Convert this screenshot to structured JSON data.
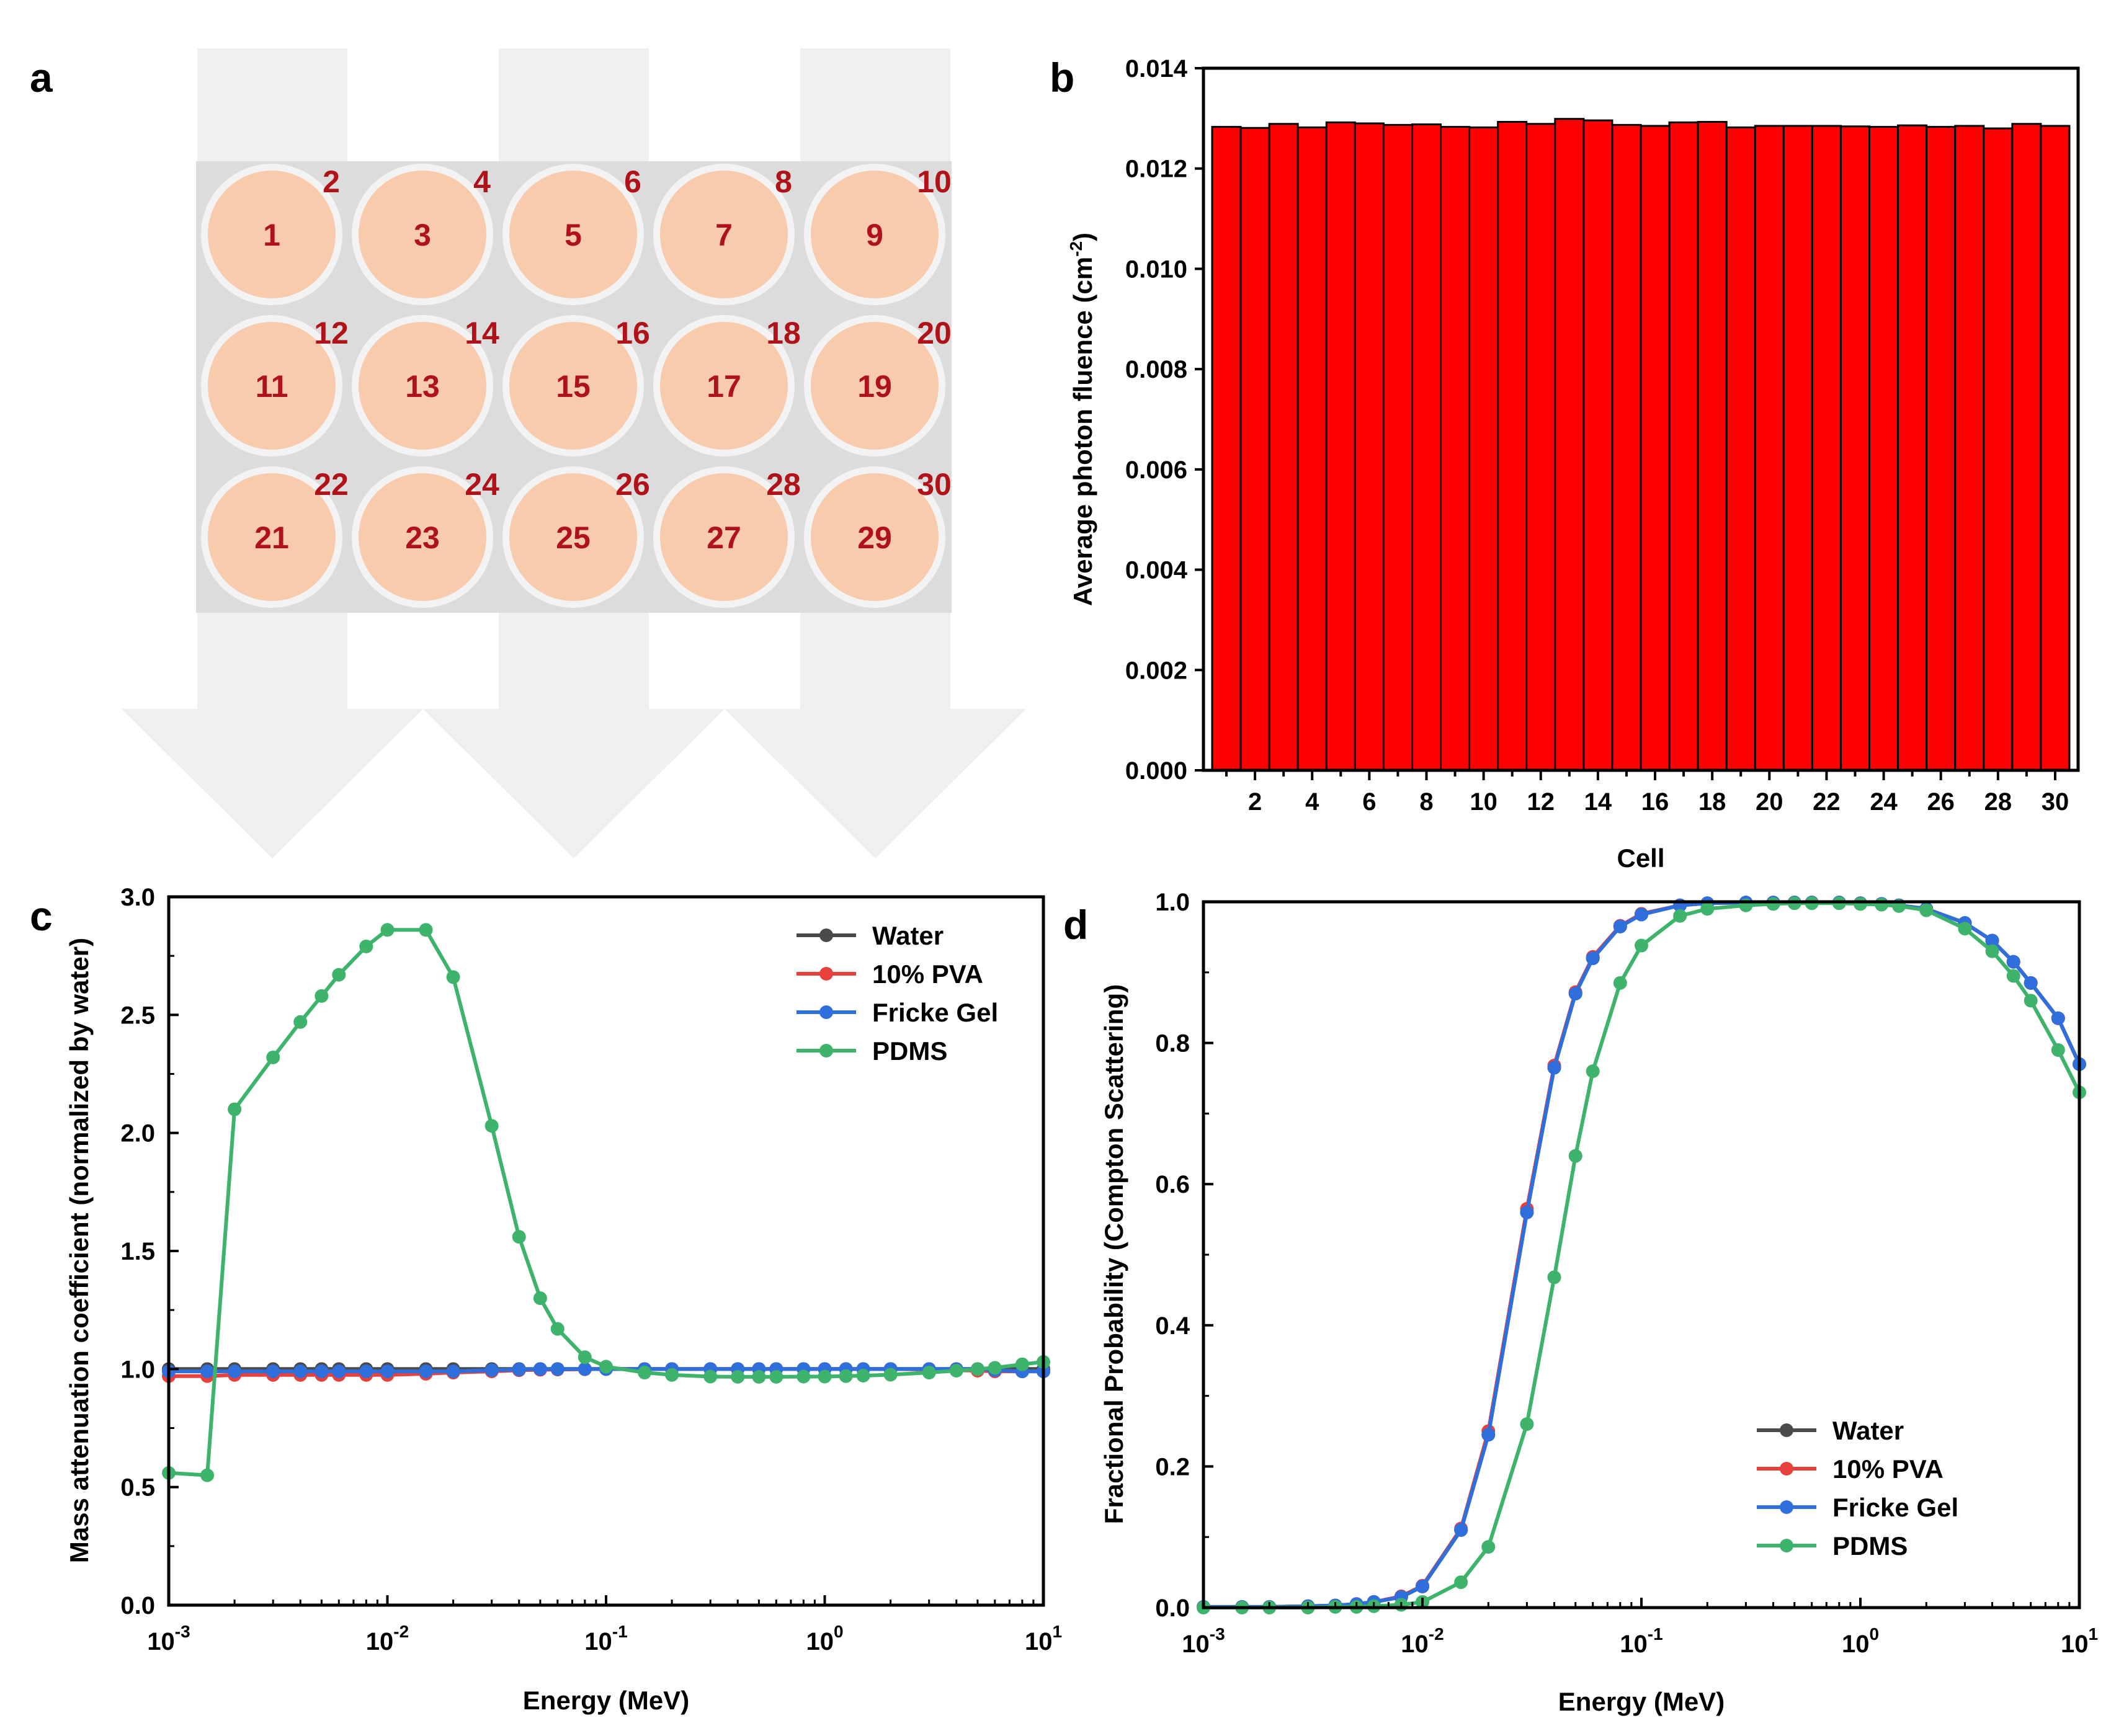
{
  "panels": {
    "a": "a",
    "b": "b",
    "c": "c",
    "d": "d"
  },
  "diagram_a": {
    "row1": {
      "centers": [
        "1",
        "3",
        "5",
        "7",
        "9"
      ],
      "corners": [
        "2",
        "4",
        "6",
        "8",
        "10"
      ]
    },
    "row2": {
      "centers": [
        "11",
        "13",
        "15",
        "17",
        "19"
      ],
      "corners": [
        "12",
        "14",
        "16",
        "18",
        "20"
      ]
    },
    "row3": {
      "centers": [
        "21",
        "23",
        "25",
        "27",
        "29"
      ],
      "corners": [
        "22",
        "24",
        "26",
        "28",
        "30"
      ]
    }
  },
  "chart_data": [
    {
      "id": "b",
      "type": "bar",
      "categories": [
        1,
        2,
        3,
        4,
        5,
        6,
        7,
        8,
        9,
        10,
        11,
        12,
        13,
        14,
        15,
        16,
        17,
        18,
        19,
        20,
        21,
        22,
        23,
        24,
        25,
        26,
        27,
        28,
        29,
        30
      ],
      "values": [
        0.01283,
        0.01281,
        0.01289,
        0.01282,
        0.01292,
        0.0129,
        0.01287,
        0.01288,
        0.01283,
        0.01282,
        0.01293,
        0.01289,
        0.01299,
        0.01296,
        0.01287,
        0.01285,
        0.01292,
        0.01293,
        0.01282,
        0.01285,
        0.01285,
        0.01285,
        0.01284,
        0.01283,
        0.01286,
        0.01283,
        0.01285,
        0.0128,
        0.01289,
        0.01285
      ],
      "xlabel": "Cell",
      "ylabel": "Average photon fluence (cm",
      "ylabel_sup": "-2",
      "ylabel_end": ")",
      "ylim": [
        0,
        0.014
      ],
      "yticks": [
        "0.000",
        "0.002",
        "0.004",
        "0.006",
        "0.008",
        "0.010",
        "0.012",
        "0.014"
      ],
      "xticks": [
        "2",
        "4",
        "6",
        "8",
        "10",
        "12",
        "14",
        "16",
        "18",
        "20",
        "22",
        "24",
        "26",
        "28",
        "30"
      ],
      "colors": {
        "bar": "#ff0000",
        "edge": "#000000"
      }
    },
    {
      "id": "c",
      "type": "line",
      "xscale": "log",
      "xlabel": "Energy (MeV)",
      "ylabel": "Mass attenuation coefficient (normalized by water)",
      "xlim": [
        0.001,
        10
      ],
      "ylim": [
        0,
        3.0
      ],
      "yticks": [
        "0.0",
        "0.5",
        "1.0",
        "1.5",
        "2.0",
        "2.5",
        "3.0"
      ],
      "xticks": [
        {
          "base": "10",
          "exp": "-3"
        },
        {
          "base": "10",
          "exp": "-2"
        },
        {
          "base": "10",
          "exp": "-1"
        },
        {
          "base": "10",
          "exp": "0"
        },
        {
          "base": "10",
          "exp": "1"
        }
      ],
      "legend_position": "top-right",
      "x": [
        0.001,
        0.0015,
        0.002,
        0.003,
        0.004,
        0.005,
        0.006,
        0.008,
        0.01,
        0.015,
        0.02,
        0.03,
        0.04,
        0.05,
        0.06,
        0.08,
        0.1,
        0.15,
        0.2,
        0.3,
        0.4,
        0.5,
        0.6,
        0.8,
        1,
        1.25,
        1.5,
        2,
        3,
        4,
        5,
        6,
        8,
        10
      ],
      "series": [
        {
          "name": "Water",
          "color": "#4a4a4a",
          "values": [
            1.0,
            1.0,
            1.0,
            1.0,
            1.0,
            1.0,
            1.0,
            1.0,
            1.0,
            1.0,
            1.0,
            1.0,
            1.0,
            1.0,
            1.0,
            1.0,
            1.0,
            1.0,
            1.0,
            1.0,
            1.0,
            1.0,
            1.0,
            1.0,
            1.0,
            1.0,
            1.0,
            1.0,
            1.0,
            1.0,
            1.0,
            1.0,
            1.0,
            1.0
          ]
        },
        {
          "name": "10% PVA",
          "color": "#e8413c",
          "values": [
            0.97,
            0.97,
            0.975,
            0.975,
            0.975,
            0.975,
            0.975,
            0.975,
            0.975,
            0.98,
            0.985,
            0.99,
            0.995,
            0.997,
            0.998,
            0.999,
            1.0,
            1.0,
            1.0,
            1.0,
            1.0,
            1.0,
            1.0,
            1.0,
            1.0,
            1.0,
            1.0,
            1.0,
            0.998,
            0.995,
            0.993,
            0.99,
            0.99,
            0.99
          ]
        },
        {
          "name": "Fricke Gel",
          "color": "#2f6fdc",
          "values": [
            0.99,
            0.99,
            0.99,
            0.99,
            0.99,
            0.99,
            0.99,
            0.99,
            0.99,
            0.99,
            0.99,
            0.995,
            0.998,
            1.0,
            1.0,
            1.0,
            1.0,
            1.0,
            1.0,
            1.0,
            1.0,
            1.0,
            1.0,
            1.0,
            1.0,
            1.0,
            1.0,
            1.0,
            1.0,
            1.0,
            1.0,
            0.995,
            0.99,
            0.99
          ]
        },
        {
          "name": "PDMS",
          "color": "#3db36b",
          "values": [
            0.56,
            0.55,
            2.1,
            2.32,
            2.47,
            2.58,
            2.67,
            2.79,
            2.86,
            2.86,
            2.66,
            2.03,
            1.56,
            1.3,
            1.17,
            1.05,
            1.01,
            0.985,
            0.975,
            0.968,
            0.967,
            0.967,
            0.967,
            0.968,
            0.968,
            0.97,
            0.972,
            0.976,
            0.985,
            0.993,
            1.0,
            1.005,
            1.02,
            1.03
          ]
        }
      ]
    },
    {
      "id": "d",
      "type": "line",
      "xscale": "log",
      "xlabel": "Energy (MeV)",
      "ylabel": "Fractional Probability (Compton Scattering)",
      "xlim": [
        0.001,
        10
      ],
      "ylim": [
        0,
        1.0
      ],
      "yticks": [
        "0.0",
        "0.2",
        "0.4",
        "0.6",
        "0.8",
        "1.0"
      ],
      "xticks": [
        {
          "base": "10",
          "exp": "-3"
        },
        {
          "base": "10",
          "exp": "-2"
        },
        {
          "base": "10",
          "exp": "-1"
        },
        {
          "base": "10",
          "exp": "0"
        },
        {
          "base": "10",
          "exp": "1"
        }
      ],
      "legend_position": "bottom-right",
      "x": [
        0.001,
        0.0015,
        0.002,
        0.003,
        0.004,
        0.005,
        0.006,
        0.008,
        0.01,
        0.015,
        0.02,
        0.03,
        0.04,
        0.05,
        0.06,
        0.08,
        0.1,
        0.15,
        0.2,
        0.3,
        0.4,
        0.5,
        0.6,
        0.8,
        1,
        1.25,
        1.5,
        2,
        3,
        4,
        5,
        6,
        8,
        10
      ],
      "series": [
        {
          "name": "Water",
          "color": "#4a4a4a",
          "values": [
            0.001,
            0.001,
            0.001,
            0.002,
            0.003,
            0.005,
            0.008,
            0.015,
            0.03,
            0.11,
            0.245,
            0.56,
            0.765,
            0.87,
            0.92,
            0.965,
            0.982,
            0.995,
            0.998,
            0.999,
            0.999,
            0.999,
            0.999,
            0.999,
            0.998,
            0.997,
            0.995,
            0.99,
            0.97,
            0.945,
            0.915,
            0.885,
            0.835,
            0.77
          ]
        },
        {
          "name": "10% PVA",
          "color": "#e8413c",
          "values": [
            0.001,
            0.001,
            0.001,
            0.002,
            0.003,
            0.005,
            0.008,
            0.016,
            0.031,
            0.112,
            0.25,
            0.565,
            0.768,
            0.872,
            0.922,
            0.966,
            0.983,
            0.995,
            0.998,
            0.999,
            0.999,
            0.999,
            0.999,
            0.999,
            0.998,
            0.997,
            0.995,
            0.99,
            0.97,
            0.945,
            0.915,
            0.885,
            0.835,
            0.77
          ]
        },
        {
          "name": "Fricke Gel",
          "color": "#2f6fdc",
          "values": [
            0.001,
            0.001,
            0.001,
            0.002,
            0.003,
            0.005,
            0.008,
            0.015,
            0.03,
            0.11,
            0.245,
            0.56,
            0.765,
            0.87,
            0.92,
            0.965,
            0.982,
            0.995,
            0.998,
            0.999,
            0.999,
            0.999,
            0.999,
            0.999,
            0.998,
            0.997,
            0.995,
            0.99,
            0.97,
            0.945,
            0.915,
            0.885,
            0.835,
            0.77
          ]
        },
        {
          "name": "PDMS",
          "color": "#3db36b",
          "values": [
            0.0,
            0.0,
            0.0,
            0.0,
            0.001,
            0.001,
            0.002,
            0.004,
            0.008,
            0.036,
            0.086,
            0.26,
            0.468,
            0.64,
            0.76,
            0.885,
            0.938,
            0.98,
            0.99,
            0.995,
            0.997,
            0.998,
            0.998,
            0.998,
            0.997,
            0.996,
            0.994,
            0.988,
            0.962,
            0.93,
            0.895,
            0.86,
            0.79,
            0.73
          ]
        }
      ]
    }
  ]
}
